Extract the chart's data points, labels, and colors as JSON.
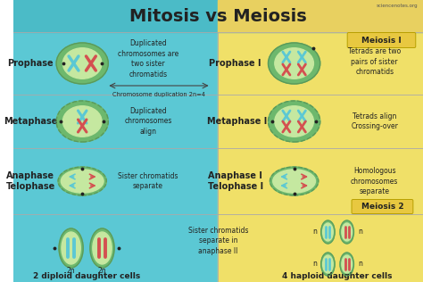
{
  "title": "Mitosis vs Meiosis",
  "watermark": "sciencenotes.org",
  "bg_left": "#5BC8D4",
  "bg_right": "#F0E068",
  "bg_title": "#4BBBC7",
  "bg_title_right": "#E8D060",
  "cell_outline": "#5a9a5a",
  "cell_fill_outer": "#6db86d",
  "cell_fill_inner": "#C5E8A0",
  "chr_blue": "#5BC8D4",
  "chr_red": "#D45050",
  "arrow_color": "#444444",
  "meiosis_label_bg": "#E8C840",
  "meiosis_label_color": "#222222",
  "text_color": "#222222",
  "bottom_left_label": "2 diploid daughter cells",
  "bottom_right_label": "4 haploid daughter cells",
  "chromosome_arrow": "Chromosome duplication 2n=4",
  "meiosis1_label": "Meiosis I",
  "meiosis2_label": "Meiosis 2",
  "sister_text": "Sister chromatids\nseparate in\nanaphase II"
}
